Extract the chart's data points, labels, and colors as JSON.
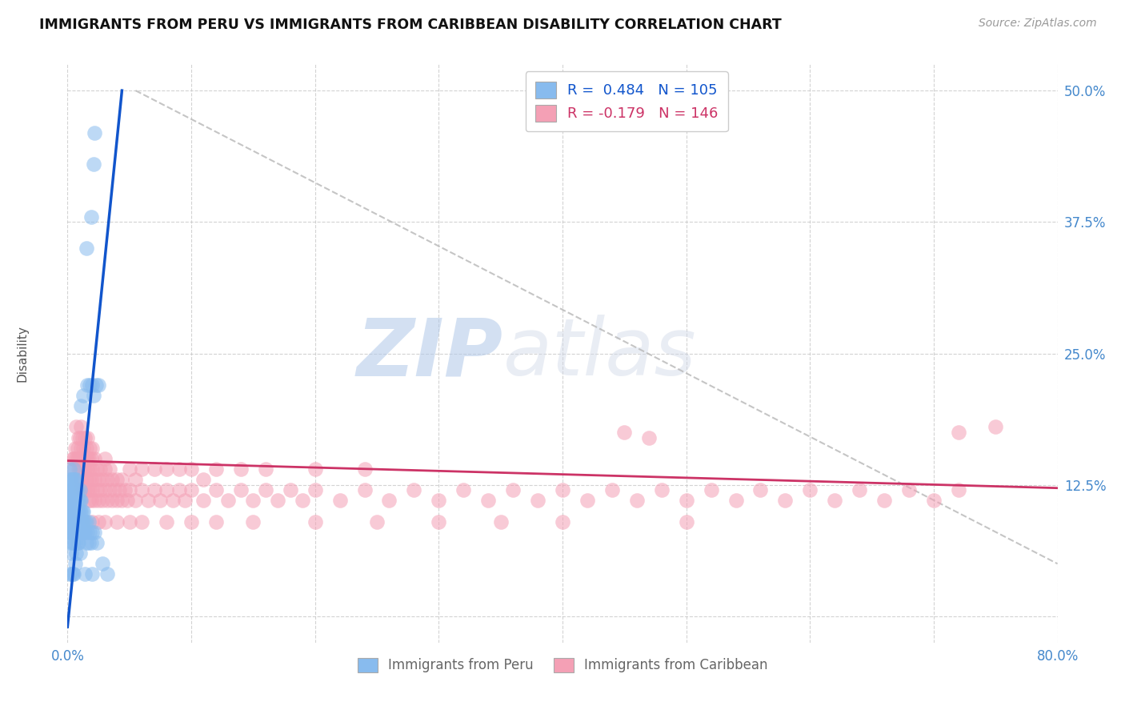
{
  "title": "IMMIGRANTS FROM PERU VS IMMIGRANTS FROM CARIBBEAN DISABILITY CORRELATION CHART",
  "source": "Source: ZipAtlas.com",
  "ylabel": "Disability",
  "xlim": [
    0.0,
    0.8
  ],
  "ylim": [
    -0.025,
    0.525
  ],
  "xticks": [
    0.0,
    0.1,
    0.2,
    0.3,
    0.4,
    0.5,
    0.6,
    0.7,
    0.8
  ],
  "yticks": [
    0.0,
    0.125,
    0.25,
    0.375,
    0.5
  ],
  "grid_color": "#c8c8c8",
  "background_color": "#ffffff",
  "peru_color": "#88bbee",
  "caribbean_color": "#f4a0b5",
  "peru_R": 0.484,
  "peru_N": 105,
  "caribbean_R": -0.179,
  "caribbean_N": 146,
  "peru_line_color": "#1155cc",
  "caribbean_line_color": "#cc3366",
  "trend_line_color": "#bbbbbb",
  "watermark_zip": "ZIP",
  "watermark_atlas": "atlas",
  "peru_line_x": [
    0.0,
    0.044
  ],
  "peru_line_y": [
    -0.01,
    0.5
  ],
  "carib_line_x": [
    0.0,
    0.8
  ],
  "carib_line_y": [
    0.148,
    0.122
  ],
  "diag_line_x": [
    0.055,
    0.8
  ],
  "diag_line_y": [
    0.5,
    0.05
  ],
  "peru_scatter": [
    [
      0.001,
      0.08
    ],
    [
      0.001,
      0.09
    ],
    [
      0.001,
      0.1
    ],
    [
      0.001,
      0.11
    ],
    [
      0.001,
      0.12
    ],
    [
      0.002,
      0.07
    ],
    [
      0.002,
      0.08
    ],
    [
      0.002,
      0.09
    ],
    [
      0.002,
      0.1
    ],
    [
      0.002,
      0.11
    ],
    [
      0.002,
      0.12
    ],
    [
      0.002,
      0.13
    ],
    [
      0.002,
      0.14
    ],
    [
      0.003,
      0.06
    ],
    [
      0.003,
      0.08
    ],
    [
      0.003,
      0.09
    ],
    [
      0.003,
      0.1
    ],
    [
      0.003,
      0.11
    ],
    [
      0.003,
      0.12
    ],
    [
      0.003,
      0.13
    ],
    [
      0.004,
      0.07
    ],
    [
      0.004,
      0.08
    ],
    [
      0.004,
      0.09
    ],
    [
      0.004,
      0.1
    ],
    [
      0.004,
      0.11
    ],
    [
      0.004,
      0.12
    ],
    [
      0.004,
      0.13
    ],
    [
      0.005,
      0.07
    ],
    [
      0.005,
      0.08
    ],
    [
      0.005,
      0.09
    ],
    [
      0.005,
      0.1
    ],
    [
      0.005,
      0.11
    ],
    [
      0.005,
      0.12
    ],
    [
      0.005,
      0.13
    ],
    [
      0.005,
      0.14
    ],
    [
      0.006,
      0.07
    ],
    [
      0.006,
      0.08
    ],
    [
      0.006,
      0.09
    ],
    [
      0.006,
      0.1
    ],
    [
      0.006,
      0.11
    ],
    [
      0.006,
      0.12
    ],
    [
      0.006,
      0.13
    ],
    [
      0.007,
      0.06
    ],
    [
      0.007,
      0.08
    ],
    [
      0.007,
      0.09
    ],
    [
      0.007,
      0.1
    ],
    [
      0.007,
      0.11
    ],
    [
      0.007,
      0.12
    ],
    [
      0.007,
      0.13
    ],
    [
      0.008,
      0.07
    ],
    [
      0.008,
      0.08
    ],
    [
      0.008,
      0.09
    ],
    [
      0.008,
      0.1
    ],
    [
      0.008,
      0.11
    ],
    [
      0.008,
      0.12
    ],
    [
      0.009,
      0.07
    ],
    [
      0.009,
      0.08
    ],
    [
      0.009,
      0.09
    ],
    [
      0.009,
      0.1
    ],
    [
      0.009,
      0.11
    ],
    [
      0.01,
      0.06
    ],
    [
      0.01,
      0.08
    ],
    [
      0.01,
      0.09
    ],
    [
      0.01,
      0.1
    ],
    [
      0.01,
      0.11
    ],
    [
      0.01,
      0.12
    ],
    [
      0.011,
      0.08
    ],
    [
      0.011,
      0.09
    ],
    [
      0.011,
      0.1
    ],
    [
      0.011,
      0.11
    ],
    [
      0.011,
      0.2
    ],
    [
      0.012,
      0.08
    ],
    [
      0.012,
      0.09
    ],
    [
      0.012,
      0.1
    ],
    [
      0.013,
      0.08
    ],
    [
      0.013,
      0.09
    ],
    [
      0.013,
      0.1
    ],
    [
      0.013,
      0.21
    ],
    [
      0.014,
      0.08
    ],
    [
      0.014,
      0.09
    ],
    [
      0.015,
      0.07
    ],
    [
      0.015,
      0.09
    ],
    [
      0.016,
      0.08
    ],
    [
      0.016,
      0.22
    ],
    [
      0.017,
      0.07
    ],
    [
      0.017,
      0.09
    ],
    [
      0.018,
      0.08
    ],
    [
      0.018,
      0.22
    ],
    [
      0.019,
      0.07
    ],
    [
      0.02,
      0.08
    ],
    [
      0.02,
      0.22
    ],
    [
      0.021,
      0.21
    ],
    [
      0.022,
      0.08
    ],
    [
      0.023,
      0.22
    ],
    [
      0.024,
      0.07
    ],
    [
      0.025,
      0.22
    ],
    [
      0.014,
      0.04
    ],
    [
      0.02,
      0.04
    ],
    [
      0.028,
      0.05
    ],
    [
      0.032,
      0.04
    ],
    [
      0.002,
      0.04
    ],
    [
      0.003,
      0.04
    ],
    [
      0.004,
      0.04
    ],
    [
      0.019,
      0.38
    ],
    [
      0.021,
      0.43
    ],
    [
      0.022,
      0.46
    ],
    [
      0.015,
      0.35
    ],
    [
      0.005,
      0.04
    ],
    [
      0.006,
      0.05
    ]
  ],
  "caribbean_scatter": [
    [
      0.002,
      0.14
    ],
    [
      0.004,
      0.15
    ],
    [
      0.005,
      0.15
    ],
    [
      0.006,
      0.16
    ],
    [
      0.007,
      0.15
    ],
    [
      0.007,
      0.18
    ],
    [
      0.008,
      0.13
    ],
    [
      0.008,
      0.15
    ],
    [
      0.008,
      0.16
    ],
    [
      0.009,
      0.14
    ],
    [
      0.009,
      0.15
    ],
    [
      0.009,
      0.17
    ],
    [
      0.01,
      0.12
    ],
    [
      0.01,
      0.14
    ],
    [
      0.01,
      0.15
    ],
    [
      0.01,
      0.17
    ],
    [
      0.011,
      0.13
    ],
    [
      0.011,
      0.15
    ],
    [
      0.011,
      0.16
    ],
    [
      0.011,
      0.18
    ],
    [
      0.012,
      0.12
    ],
    [
      0.012,
      0.14
    ],
    [
      0.012,
      0.15
    ],
    [
      0.012,
      0.17
    ],
    [
      0.013,
      0.13
    ],
    [
      0.013,
      0.15
    ],
    [
      0.013,
      0.16
    ],
    [
      0.014,
      0.12
    ],
    [
      0.014,
      0.14
    ],
    [
      0.014,
      0.15
    ],
    [
      0.014,
      0.17
    ],
    [
      0.015,
      0.13
    ],
    [
      0.015,
      0.15
    ],
    [
      0.015,
      0.16
    ],
    [
      0.016,
      0.12
    ],
    [
      0.016,
      0.14
    ],
    [
      0.016,
      0.15
    ],
    [
      0.016,
      0.17
    ],
    [
      0.017,
      0.11
    ],
    [
      0.017,
      0.13
    ],
    [
      0.017,
      0.15
    ],
    [
      0.018,
      0.12
    ],
    [
      0.018,
      0.14
    ],
    [
      0.018,
      0.16
    ],
    [
      0.019,
      0.11
    ],
    [
      0.019,
      0.13
    ],
    [
      0.019,
      0.15
    ],
    [
      0.02,
      0.12
    ],
    [
      0.02,
      0.14
    ],
    [
      0.02,
      0.16
    ],
    [
      0.022,
      0.11
    ],
    [
      0.022,
      0.13
    ],
    [
      0.022,
      0.15
    ],
    [
      0.024,
      0.12
    ],
    [
      0.024,
      0.14
    ],
    [
      0.025,
      0.11
    ],
    [
      0.025,
      0.13
    ],
    [
      0.026,
      0.12
    ],
    [
      0.026,
      0.14
    ],
    [
      0.028,
      0.11
    ],
    [
      0.028,
      0.13
    ],
    [
      0.03,
      0.15
    ],
    [
      0.03,
      0.12
    ],
    [
      0.03,
      0.14
    ],
    [
      0.032,
      0.11
    ],
    [
      0.032,
      0.13
    ],
    [
      0.034,
      0.12
    ],
    [
      0.034,
      0.14
    ],
    [
      0.036,
      0.11
    ],
    [
      0.036,
      0.13
    ],
    [
      0.038,
      0.12
    ],
    [
      0.04,
      0.11
    ],
    [
      0.04,
      0.13
    ],
    [
      0.042,
      0.12
    ],
    [
      0.044,
      0.11
    ],
    [
      0.044,
      0.13
    ],
    [
      0.046,
      0.12
    ],
    [
      0.048,
      0.11
    ],
    [
      0.05,
      0.12
    ],
    [
      0.05,
      0.14
    ],
    [
      0.055,
      0.11
    ],
    [
      0.055,
      0.13
    ],
    [
      0.06,
      0.12
    ],
    [
      0.06,
      0.14
    ],
    [
      0.065,
      0.11
    ],
    [
      0.07,
      0.12
    ],
    [
      0.07,
      0.14
    ],
    [
      0.075,
      0.11
    ],
    [
      0.08,
      0.12
    ],
    [
      0.08,
      0.14
    ],
    [
      0.085,
      0.11
    ],
    [
      0.09,
      0.12
    ],
    [
      0.09,
      0.14
    ],
    [
      0.095,
      0.11
    ],
    [
      0.1,
      0.12
    ],
    [
      0.1,
      0.14
    ],
    [
      0.11,
      0.11
    ],
    [
      0.11,
      0.13
    ],
    [
      0.12,
      0.12
    ],
    [
      0.12,
      0.14
    ],
    [
      0.13,
      0.11
    ],
    [
      0.14,
      0.12
    ],
    [
      0.14,
      0.14
    ],
    [
      0.15,
      0.11
    ],
    [
      0.16,
      0.12
    ],
    [
      0.16,
      0.14
    ],
    [
      0.17,
      0.11
    ],
    [
      0.18,
      0.12
    ],
    [
      0.19,
      0.11
    ],
    [
      0.2,
      0.12
    ],
    [
      0.2,
      0.14
    ],
    [
      0.22,
      0.11
    ],
    [
      0.24,
      0.12
    ],
    [
      0.24,
      0.14
    ],
    [
      0.26,
      0.11
    ],
    [
      0.28,
      0.12
    ],
    [
      0.3,
      0.11
    ],
    [
      0.32,
      0.12
    ],
    [
      0.34,
      0.11
    ],
    [
      0.36,
      0.12
    ],
    [
      0.38,
      0.11
    ],
    [
      0.4,
      0.12
    ],
    [
      0.42,
      0.11
    ],
    [
      0.44,
      0.12
    ],
    [
      0.46,
      0.11
    ],
    [
      0.48,
      0.12
    ],
    [
      0.5,
      0.11
    ],
    [
      0.52,
      0.12
    ],
    [
      0.54,
      0.11
    ],
    [
      0.56,
      0.12
    ],
    [
      0.58,
      0.11
    ],
    [
      0.6,
      0.12
    ],
    [
      0.62,
      0.11
    ],
    [
      0.64,
      0.12
    ],
    [
      0.66,
      0.11
    ],
    [
      0.68,
      0.12
    ],
    [
      0.7,
      0.11
    ],
    [
      0.72,
      0.12
    ],
    [
      0.02,
      0.09
    ],
    [
      0.025,
      0.09
    ],
    [
      0.03,
      0.09
    ],
    [
      0.04,
      0.09
    ],
    [
      0.05,
      0.09
    ],
    [
      0.06,
      0.09
    ],
    [
      0.08,
      0.09
    ],
    [
      0.1,
      0.09
    ],
    [
      0.12,
      0.09
    ],
    [
      0.15,
      0.09
    ],
    [
      0.2,
      0.09
    ],
    [
      0.25,
      0.09
    ],
    [
      0.3,
      0.09
    ],
    [
      0.35,
      0.09
    ],
    [
      0.4,
      0.09
    ],
    [
      0.5,
      0.09
    ],
    [
      0.45,
      0.175
    ],
    [
      0.47,
      0.17
    ],
    [
      0.72,
      0.175
    ],
    [
      0.75,
      0.18
    ]
  ]
}
